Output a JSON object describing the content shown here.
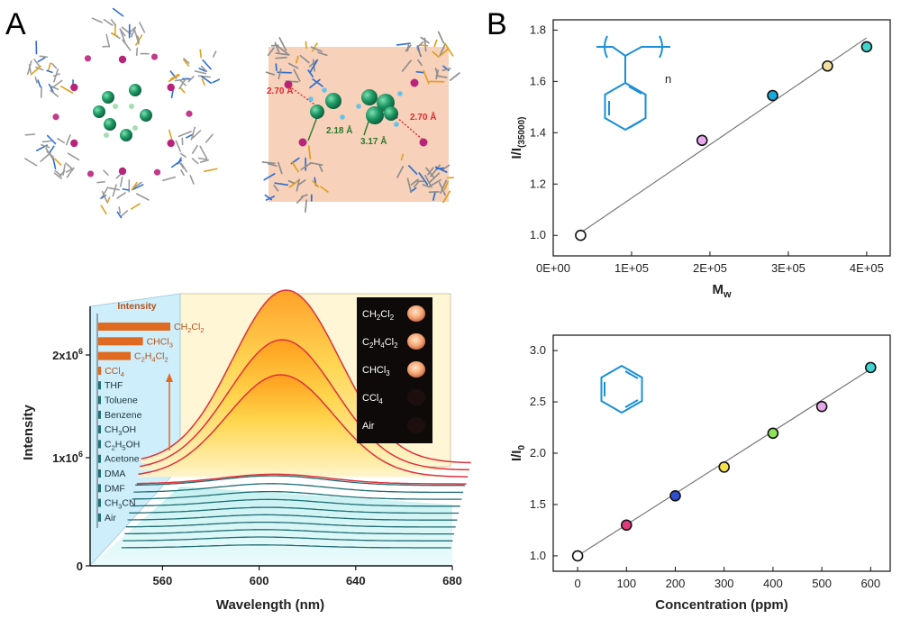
{
  "panel_labels": {
    "a": "A",
    "b": "B"
  },
  "structure_left": {},
  "structure_right": {
    "dist_red_left": "2.70 Å",
    "dist_red_right": "2.70 Å",
    "dist_green_1": "2.18 Å",
    "dist_green_2": "3.17 Å"
  },
  "colors": {
    "emission_red": "#e0303a",
    "emission_teal": "#1e6d73",
    "bar_orange": "#e06a1f",
    "bar_teal": "#1f7078",
    "benzene_blue": "#1a8fd6"
  },
  "chart_data": [
    {
      "id": "solvent-emission",
      "type": "line",
      "xlabel": "Wavelength (nm)",
      "ylabel": "Intensity",
      "xticks": [
        "560",
        "600",
        "640",
        "680"
      ],
      "yticks": [
        "0",
        "1x10",
        "2x10"
      ],
      "ytick_exponent": "6",
      "xlim": [
        530,
        680
      ],
      "ylim": [
        0,
        2400000
      ],
      "inset_title": "Intensity",
      "solvents": [
        {
          "formula": "CH",
          "sub1": "2",
          "mid": "Cl",
          "sub2": "2",
          "level": 1.0,
          "group": "halogen"
        },
        {
          "formula": "CHCl",
          "sub1": "3",
          "mid": "",
          "sub2": "",
          "level": 0.62,
          "group": "halogen"
        },
        {
          "formula": "C",
          "sub1": "2",
          "mid": "H",
          "sub2": "4",
          "tail": "Cl",
          "sub3": "2",
          "level": 0.45,
          "group": "halogen"
        },
        {
          "formula": "CCl",
          "sub1": "4",
          "mid": "",
          "sub2": "",
          "level": 0.04,
          "group": "halogen"
        },
        {
          "formula": "THF",
          "level": 0.02,
          "group": "other"
        },
        {
          "formula": "Toluene",
          "level": 0.02,
          "group": "other"
        },
        {
          "formula": "Benzene",
          "level": 0.02,
          "group": "other"
        },
        {
          "formula": "CH",
          "sub1": "3",
          "mid": "OH",
          "level": 0.02,
          "group": "other"
        },
        {
          "formula": "C",
          "sub1": "2",
          "mid": "H",
          "sub2": "5",
          "tail": "OH",
          "level": 0.03,
          "group": "other"
        },
        {
          "formula": "Acetone",
          "level": 0.02,
          "group": "other"
        },
        {
          "formula": "DMA",
          "level": 0.015,
          "group": "other"
        },
        {
          "formula": "DMF",
          "level": 0.015,
          "group": "other"
        },
        {
          "formula": "CH",
          "sub1": "3",
          "mid": "CN",
          "level": 0.02,
          "group": "other"
        },
        {
          "formula": "Air",
          "level": 0.02,
          "group": "other"
        }
      ],
      "photo_labels": [
        {
          "formula": "CH",
          "sub1": "2",
          "mid": "Cl",
          "sub2": "2",
          "glow": true
        },
        {
          "formula": "C",
          "sub1": "2",
          "mid": "H",
          "sub2": "4",
          "tail": "Cl",
          "sub3": "2",
          "glow": true
        },
        {
          "formula": "CHCl",
          "sub1": "3",
          "glow": true
        },
        {
          "formula": "CCl",
          "sub1": "4",
          "glow": false
        },
        {
          "formula": "Air",
          "glow": false
        }
      ],
      "series": [
        {
          "peak_nm": 603,
          "peak": 2150000,
          "color": "red"
        },
        {
          "peak_nm": 602,
          "peak": 1620000,
          "color": "red"
        },
        {
          "peak_nm": 602,
          "peak": 1270000,
          "color": "red"
        },
        {
          "peak_nm": 600,
          "peak": 120000,
          "color": "red"
        },
        {
          "peak_nm": 600,
          "peak": 100000,
          "color": "teal"
        },
        {
          "peak_nm": 600,
          "peak": 90000,
          "color": "teal"
        },
        {
          "peak_nm": 600,
          "peak": 80000,
          "color": "teal"
        },
        {
          "peak_nm": 600,
          "peak": 70000,
          "color": "teal"
        },
        {
          "peak_nm": 600,
          "peak": 60000,
          "color": "teal"
        },
        {
          "peak_nm": 600,
          "peak": 55000,
          "color": "teal"
        },
        {
          "peak_nm": 600,
          "peak": 50000,
          "color": "teal"
        },
        {
          "peak_nm": 600,
          "peak": 45000,
          "color": "teal"
        },
        {
          "peak_nm": 600,
          "peak": 40000,
          "color": "teal"
        },
        {
          "peak_nm": 600,
          "peak": 30000,
          "color": "teal"
        }
      ]
    },
    {
      "id": "mw-plot",
      "type": "scatter",
      "xlabel": "M",
      "xlabel_sub": "w",
      "ylabel": "I/I",
      "ylabel_sub": "(35000)",
      "xticks": [
        "0E+00",
        "1E+05",
        "2E+05",
        "3E+05",
        "4E+05"
      ],
      "yticks": [
        "1.0",
        "1.2",
        "1.4",
        "1.6",
        "1.8"
      ],
      "xlim": [
        0,
        430000
      ],
      "ylim": [
        0.92,
        1.84
      ],
      "fit_line": {
        "x0": 35000,
        "y0": 1.01,
        "x1": 400000,
        "y1": 1.77
      },
      "structure_label": "n",
      "x": [
        35000,
        190000,
        280000,
        350000,
        400000
      ],
      "y": [
        1.0,
        1.37,
        1.545,
        1.66,
        1.735
      ],
      "point_colors": [
        "#ffffff",
        "#e9a8ee",
        "#1aa8d8",
        "#f2e0a0",
        "#3fd4d0"
      ]
    },
    {
      "id": "concentration-plot",
      "type": "scatter",
      "xlabel": "Concentration (ppm)",
      "ylabel": "I/I",
      "ylabel_sub": "0",
      "xticks": [
        "0",
        "100",
        "200",
        "300",
        "400",
        "500",
        "600"
      ],
      "yticks": [
        "1.0",
        "1.5",
        "2.0",
        "2.5",
        "3.0"
      ],
      "xlim": [
        -50,
        640
      ],
      "ylim": [
        0.85,
        3.15
      ],
      "fit_line": {
        "x0": 0,
        "y0": 1.0,
        "x1": 600,
        "y1": 2.82
      },
      "x": [
        0,
        100,
        200,
        300,
        400,
        500,
        600
      ],
      "y": [
        1.0,
        1.3,
        1.585,
        1.865,
        2.195,
        2.455,
        2.835
      ],
      "point_colors": [
        "#ffffff",
        "#e03a7e",
        "#2f4fd0",
        "#f3e04a",
        "#8fe05a",
        "#e4a8e8",
        "#3fd4d0"
      ]
    }
  ]
}
